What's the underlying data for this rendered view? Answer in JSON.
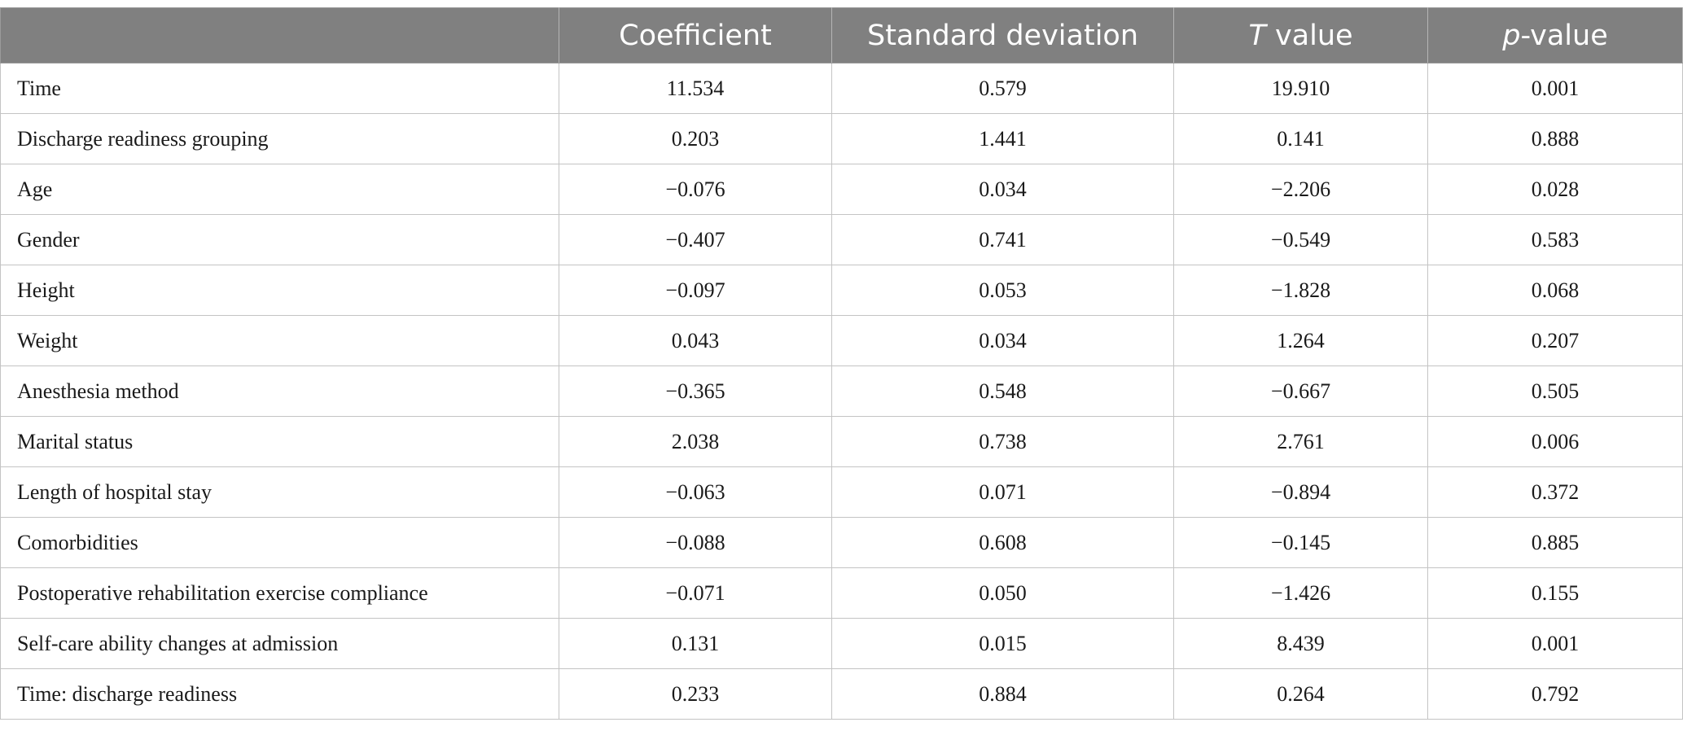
{
  "table": {
    "headers": [
      {
        "prefix": "",
        "italic": "",
        "suffix": ""
      },
      {
        "prefix": "Coefficient",
        "italic": "",
        "suffix": ""
      },
      {
        "prefix": "Standard deviation",
        "italic": "",
        "suffix": ""
      },
      {
        "prefix": "",
        "italic": "T",
        "suffix": " value"
      },
      {
        "prefix": "",
        "italic": "p",
        "suffix": "-value"
      }
    ],
    "rows": [
      {
        "label": "Time",
        "coefficient": "11.534",
        "sd": "0.579",
        "t": "19.910",
        "p": "0.001"
      },
      {
        "label": "Discharge readiness grouping",
        "coefficient": "0.203",
        "sd": "1.441",
        "t": "0.141",
        "p": "0.888"
      },
      {
        "label": "Age",
        "coefficient": "−0.076",
        "sd": "0.034",
        "t": "−2.206",
        "p": "0.028"
      },
      {
        "label": "Gender",
        "coefficient": "−0.407",
        "sd": "0.741",
        "t": "−0.549",
        "p": "0.583"
      },
      {
        "label": "Height",
        "coefficient": "−0.097",
        "sd": "0.053",
        "t": "−1.828",
        "p": "0.068"
      },
      {
        "label": "Weight",
        "coefficient": "0.043",
        "sd": "0.034",
        "t": "1.264",
        "p": "0.207"
      },
      {
        "label": "Anesthesia method",
        "coefficient": "−0.365",
        "sd": "0.548",
        "t": "−0.667",
        "p": "0.505"
      },
      {
        "label": "Marital status",
        "coefficient": "2.038",
        "sd": "0.738",
        "t": "2.761",
        "p": "0.006"
      },
      {
        "label": "Length of hospital stay",
        "coefficient": "−0.063",
        "sd": "0.071",
        "t": "−0.894",
        "p": "0.372"
      },
      {
        "label": "Comorbidities",
        "coefficient": "−0.088",
        "sd": "0.608",
        "t": "−0.145",
        "p": "0.885"
      },
      {
        "label": "Postoperative rehabilitation exercise compliance",
        "coefficient": "−0.071",
        "sd": "0.050",
        "t": "−1.426",
        "p": "0.155"
      },
      {
        "label": "Self-care ability changes at admission",
        "coefficient": "0.131",
        "sd": "0.015",
        "t": "8.439",
        "p": "0.001"
      },
      {
        "label": "Time: discharge readiness",
        "coefficient": "0.233",
        "sd": "0.884",
        "t": "0.264",
        "p": "0.792"
      }
    ]
  },
  "colors": {
    "header_background": "#808080",
    "header_text": "#ffffff",
    "grid_lines": "#c4c4c4"
  }
}
